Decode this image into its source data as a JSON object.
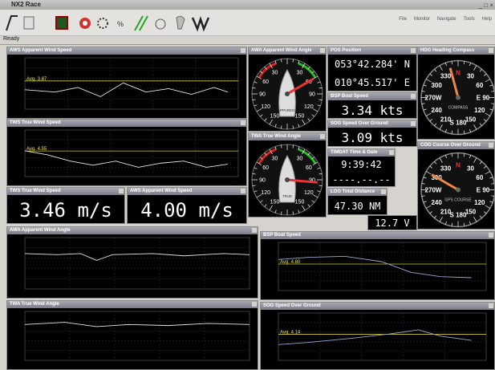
{
  "window": {
    "title": "NX2 Race",
    "menu": [
      "File",
      "Monitor",
      "Navigate",
      "Tools",
      "Help"
    ],
    "status": "Ready"
  },
  "graphs": [
    {
      "title": "AWS Apparent Wind Speed",
      "avg": "Avg. 3.87"
    },
    {
      "title": "TWS True Wind Speed",
      "avg": "Avg. 4.55"
    },
    {
      "title": "AWA Apparent Wind Angle"
    },
    {
      "title": "TWA True Wind Angle"
    },
    {
      "title": "BSP Boat Speed",
      "avg": "Avg. 4.80"
    },
    {
      "title": "SOG Speed Over Ground",
      "avg": "Avg. 4.14"
    }
  ],
  "digitals": [
    {
      "title": "TWS True Wind Speed",
      "lines": [
        "3.46 m/s"
      ]
    },
    {
      "title": "AWS Apparent Wind Speed",
      "lines": [
        "4.00 m/s"
      ]
    },
    {
      "title": "POS Position",
      "lines": [
        "053°42.284' N",
        "010°45.517' E"
      ]
    },
    {
      "title": "BSP Boat Speed",
      "lines": [
        "3.34 kts"
      ]
    },
    {
      "title": "SOG Speed Over Ground",
      "lines": [
        "3.09 kts"
      ]
    },
    {
      "title": "TIMDAT Time & Date",
      "lines": [
        "9:39:42",
        "----.--.--"
      ]
    },
    {
      "title": "LOG Total Distance",
      "lines": [
        "47.30 NM"
      ]
    },
    {
      "lines": [
        "12.7 V"
      ]
    }
  ],
  "gauges": [
    {
      "title": "AWA Apparent Wind Angle",
      "caption": "APPARENT",
      "labels": [
        "30",
        "60",
        "90",
        "120",
        "150"
      ]
    },
    {
      "title": "TWA True Wind Angle",
      "caption": "TRUE",
      "labels": [
        "30",
        "60",
        "90",
        "120",
        "150"
      ]
    }
  ],
  "compasses": [
    {
      "title": "HDG Heading Compass",
      "caption": "COMPASS",
      "labels": [
        "N",
        "30",
        "60",
        "E 90",
        "120",
        "150",
        "S 180",
        "210",
        "240",
        "270W",
        "300",
        "330"
      ]
    },
    {
      "title": "COG Course Over Ground",
      "caption": "GPS COURSE",
      "labels": [
        "N",
        "30",
        "60",
        "E 90",
        "120",
        "150",
        "S 180",
        "210",
        "240",
        "270W",
        "300",
        "330"
      ]
    }
  ]
}
